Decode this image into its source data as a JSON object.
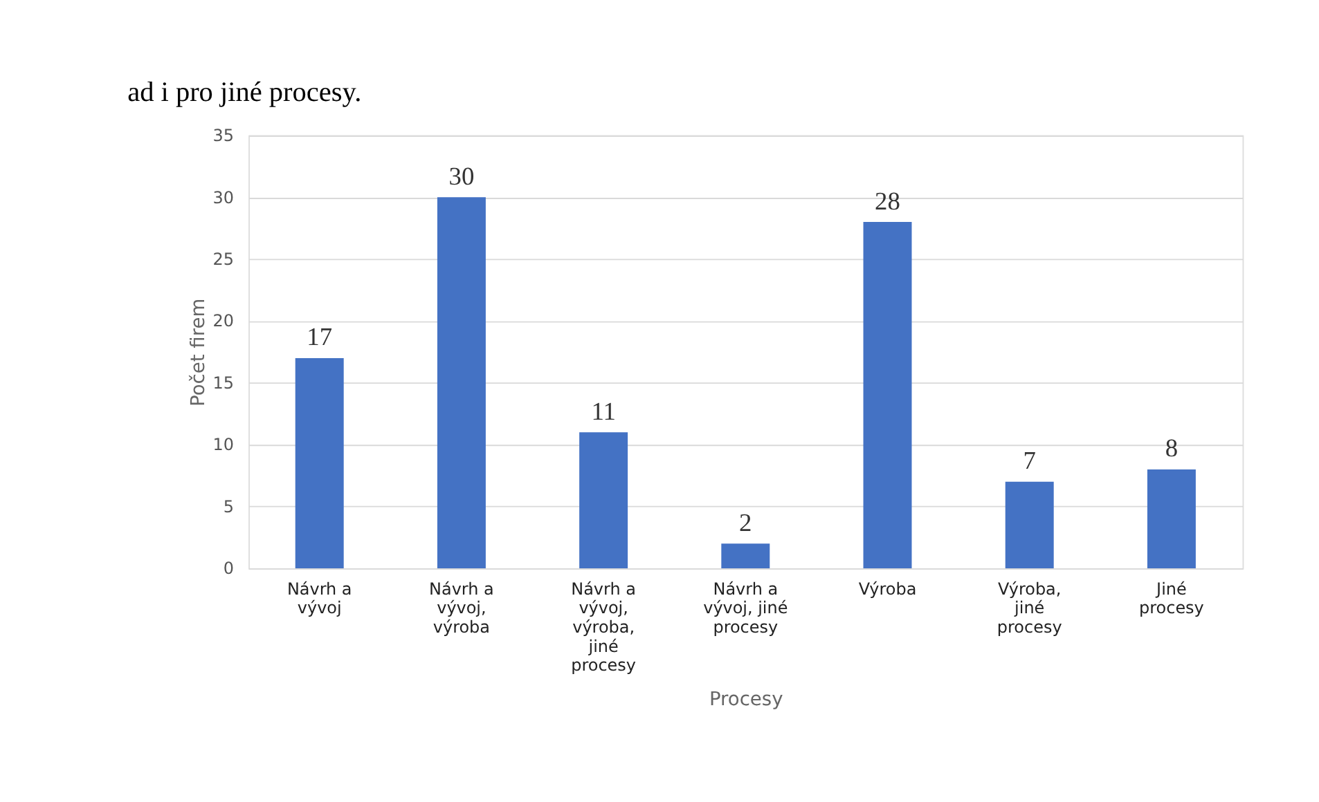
{
  "chart_data": {
    "type": "bar",
    "categories": [
      "Návrh a vývoj",
      "Návrh a vývoj, výroba",
      "Návrh a vývoj, výroba, jiné procesy",
      "Návrh a vývoj, jiné procesy",
      "Výroba",
      "Výroba, jiné procesy",
      "Jiné procesy"
    ],
    "values": [
      17,
      30,
      11,
      2,
      28,
      7,
      8
    ],
    "color": "#4472c4",
    "xlabel": "Procesy",
    "ylabel": "Počet firem",
    "ylim": [
      0,
      35
    ],
    "yticks": [
      0,
      5,
      10,
      15,
      20,
      25,
      30,
      35
    ],
    "grid": "y",
    "data_labels": true,
    "annotations": [
      "ad i pro jiné procesy."
    ]
  }
}
